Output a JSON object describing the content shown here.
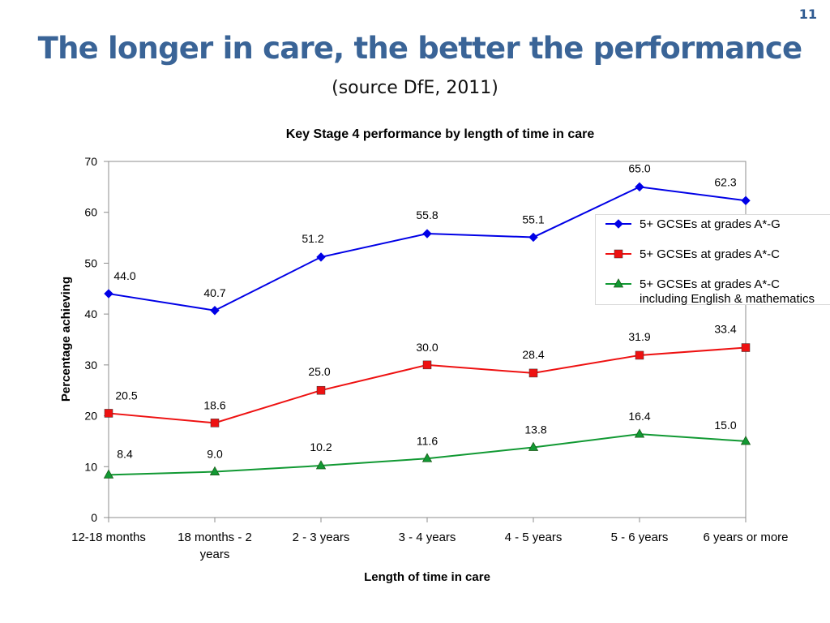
{
  "slide": {
    "number": "11",
    "title": "The longer in care, the better the performance",
    "subtitle": "(source DfE, 2011)"
  },
  "chart_data": {
    "type": "line",
    "title": "Key Stage 4 performance by length of time in care",
    "xlabel": "Length of time in care",
    "ylabel": "Percentage achieving",
    "ylim": [
      0,
      70
    ],
    "yticks": [
      0,
      10,
      20,
      30,
      40,
      50,
      60,
      70
    ],
    "categories": [
      [
        "12-18 months"
      ],
      [
        "18 months - 2",
        "years"
      ],
      [
        "2 - 3 years"
      ],
      [
        "3 - 4 years"
      ],
      [
        "4 - 5 years"
      ],
      [
        "5 - 6 years"
      ],
      [
        "6 years or more"
      ]
    ],
    "legend_position": "right",
    "series": [
      {
        "name": "5+ GCSEs at grades A*-G",
        "legend_lines": [
          "5+ GCSEs at grades A*-G"
        ],
        "color": "#0000e6",
        "marker": "diamond",
        "values": [
          44.0,
          40.7,
          51.2,
          55.8,
          55.1,
          65.0,
          62.3
        ],
        "labels": [
          "44.0",
          "40.7",
          "51.2",
          "55.8",
          "55.1",
          "65.0",
          "62.3"
        ]
      },
      {
        "name": "5+ GCSEs at grades A*-C",
        "legend_lines": [
          "5+ GCSEs at grades A*-C"
        ],
        "color": "#ee1111",
        "marker": "square",
        "values": [
          20.5,
          18.6,
          25.0,
          30.0,
          28.4,
          31.9,
          33.4
        ],
        "labels": [
          "20.5",
          "18.6",
          "25.0",
          "30.0",
          "28.4",
          "31.9",
          "33.4"
        ]
      },
      {
        "name": "5+ GCSEs at grades A*-C including English & mathematics",
        "legend_lines": [
          "5+ GCSEs at grades A*-C",
          "including English & mathematics"
        ],
        "color": "#119933",
        "marker": "triangle",
        "values": [
          8.4,
          9.0,
          10.2,
          11.6,
          13.8,
          16.4,
          15.0
        ],
        "labels": [
          "8.4",
          "9.0",
          "10.2",
          "11.6",
          "13.8",
          "16.4",
          "15.0"
        ]
      }
    ]
  }
}
